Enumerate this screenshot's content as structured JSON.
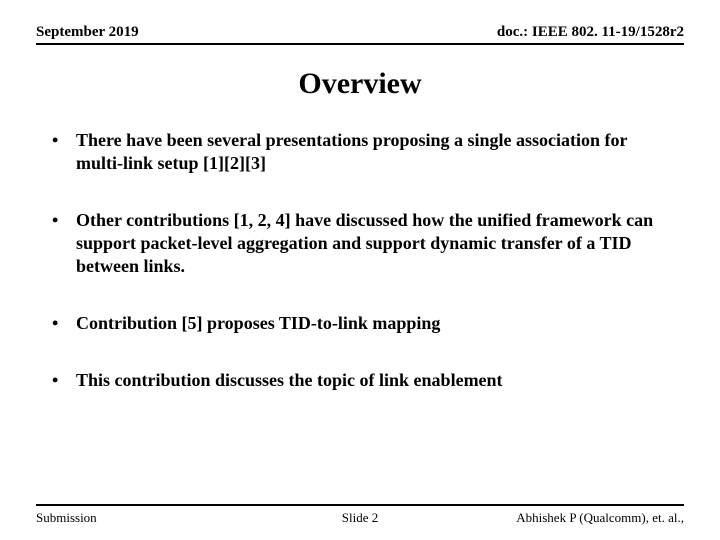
{
  "header": {
    "left": "September 2019",
    "right": "doc.: IEEE 802. 11-19/1528r2"
  },
  "title": "Overview",
  "bullets": [
    "There have been several presentations proposing a single association for multi-link setup [1][2][3]",
    "Other contributions [1, 2, 4] have discussed how the unified framework can support packet-level aggregation and support dynamic transfer of a TID between links.",
    "Contribution [5] proposes TID-to-link mapping",
    "This contribution discusses the topic of link enablement"
  ],
  "footer": {
    "left": "Submission",
    "center": "Slide 2",
    "right": "Abhishek P (Qualcomm), et. al.,"
  }
}
